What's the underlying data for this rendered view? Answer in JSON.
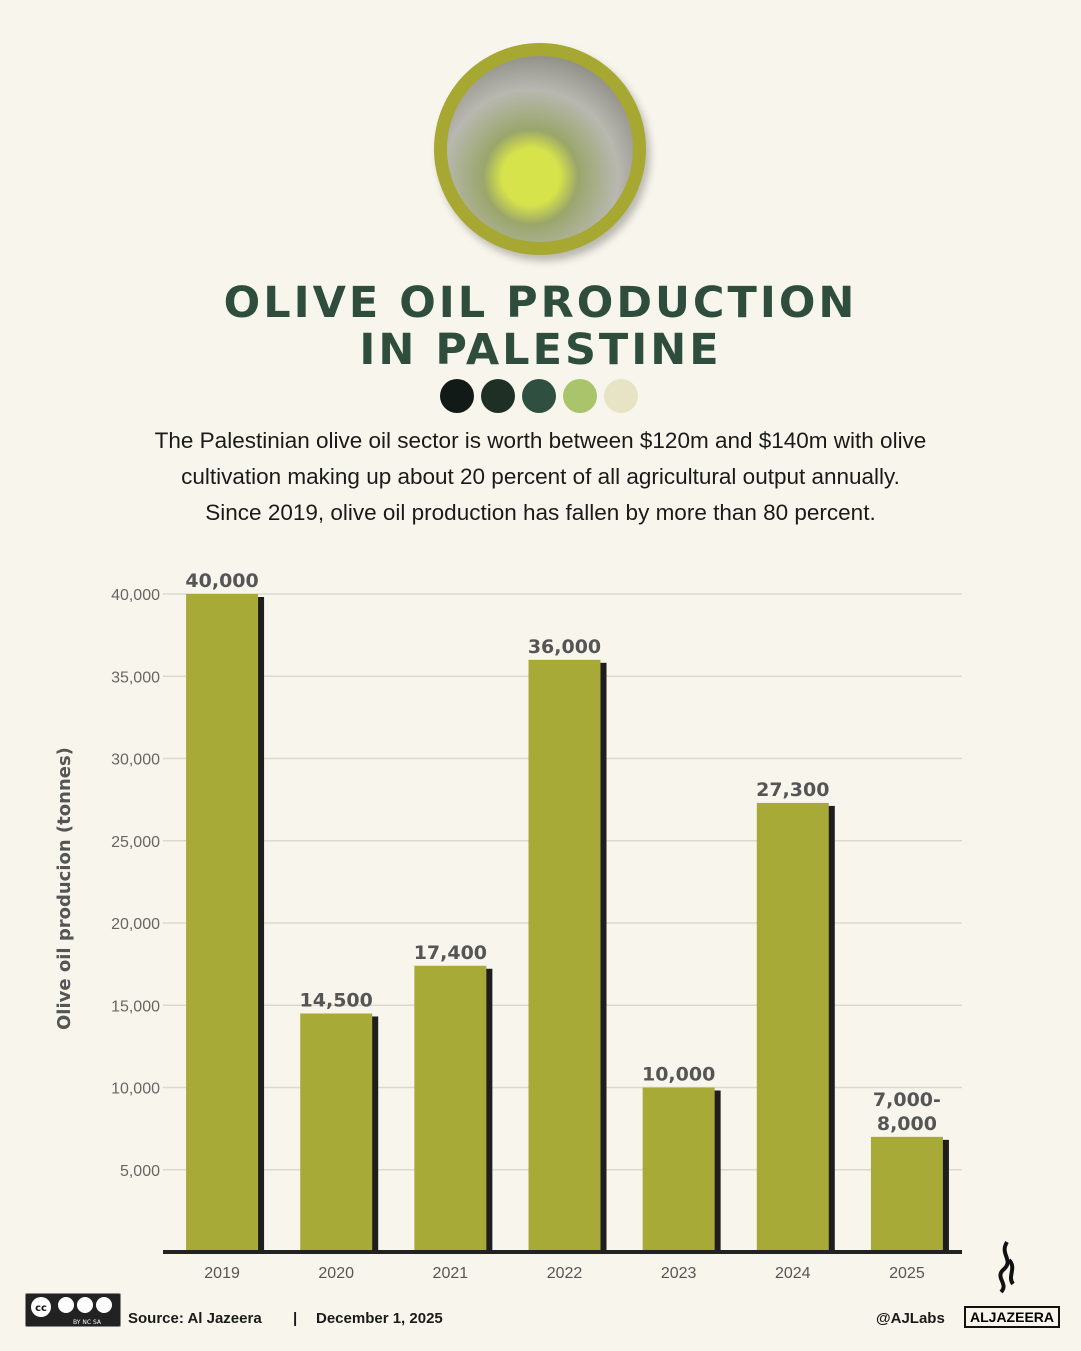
{
  "header": {
    "title_line1": "OLIVE OIL PRODUCTION",
    "title_line2": "IN PALESTINE",
    "palette": [
      "#111a16",
      "#1f2f25",
      "#2f5040",
      "#a9c46a",
      "#e6e4c4"
    ],
    "subtitle_line1": "The Palestinian olive oil sector is worth between $120m and $140m with olive",
    "subtitle_line2": "cultivation making up about 20 percent of all agricultural output annually.",
    "subtitle_line3": "Since 2019, olive oil production has fallen by more than 80 percent."
  },
  "chart_data": {
    "type": "bar",
    "categories": [
      "2019",
      "2020",
      "2021",
      "2022",
      "2023",
      "2024",
      "2025"
    ],
    "values": [
      40000,
      14500,
      17400,
      36000,
      10000,
      27300,
      7000
    ],
    "data_labels": [
      "40,000",
      "14,500",
      "17,400",
      "36,000",
      "10,000",
      "27,300",
      "7,000-\n8,000"
    ],
    "ylabel": "Olive oil producion (tonnes)",
    "xlabel": "",
    "ylim": [
      0,
      40000
    ],
    "yticks": [
      5000,
      10000,
      15000,
      20000,
      25000,
      30000,
      35000,
      40000
    ],
    "ytick_labels": [
      "5,000",
      "10,000",
      "15,000",
      "20,000",
      "25,000",
      "30,000",
      "35,000",
      "40,000"
    ],
    "grid": true,
    "bar_color": "#a8aa38",
    "shadow_color": "#1e1e1e"
  },
  "footer": {
    "license": "CC BY NC SA",
    "source": "Source:  Al Jazeera",
    "separator": "|",
    "date": "December 1, 2025",
    "handle": "@AJLabs",
    "brand": "ALJAZEERA"
  }
}
